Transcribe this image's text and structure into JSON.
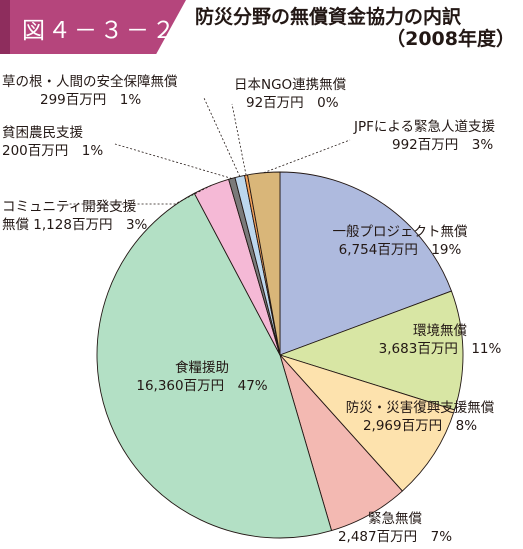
{
  "header": {
    "figure_label": "図４－３－２",
    "title_line1": "防災分野の無償資金協力の内訳",
    "title_line2": "（2008年度）"
  },
  "chart_data": {
    "type": "pie",
    "start_angle_deg": 0,
    "direction": "clockwise",
    "slices": [
      {
        "name": "一般プロジェクト無償",
        "amount": "6,754百万円",
        "value": 6754,
        "percent": "19%",
        "color": "#aebade"
      },
      {
        "name": "環境無償",
        "amount": "3,683百万円",
        "value": 3683,
        "percent": "11%",
        "color": "#d8e6a4"
      },
      {
        "name": "防災・災害復興支援無償",
        "amount": "2,969百万円",
        "value": 2969,
        "percent": "8%",
        "color": "#fde2ad"
      },
      {
        "name": "緊急無償",
        "amount": "2,487百万円",
        "value": 2487,
        "percent": "7%",
        "color": "#f3b9b2"
      },
      {
        "name": "食糧援助",
        "amount": "16,360百万円",
        "value": 16360,
        "percent": "47%",
        "color": "#b3e0c5"
      },
      {
        "name": "コミュニティ開発支援無償",
        "amount": "1,128百万円",
        "value": 1128,
        "percent": "3%",
        "color": "#f5b9d6",
        "label_prefix": "無償"
      },
      {
        "name": "貧困農民支援",
        "amount": "200百万円",
        "value": 200,
        "percent": "1%",
        "color": "#7a7a7a"
      },
      {
        "name": "草の根・人間の安全保障無償",
        "amount": "299百万円",
        "value": 299,
        "percent": "1%",
        "color": "#bcd7ee"
      },
      {
        "name": "日本NGO連携無償",
        "amount": "92百万円",
        "value": 92,
        "percent": "0%",
        "color": "#f5a25a"
      },
      {
        "name": "JPFによる緊急人道支援",
        "amount": "992百万円",
        "value": 992,
        "percent": "3%",
        "color": "#d9b679"
      }
    ]
  }
}
